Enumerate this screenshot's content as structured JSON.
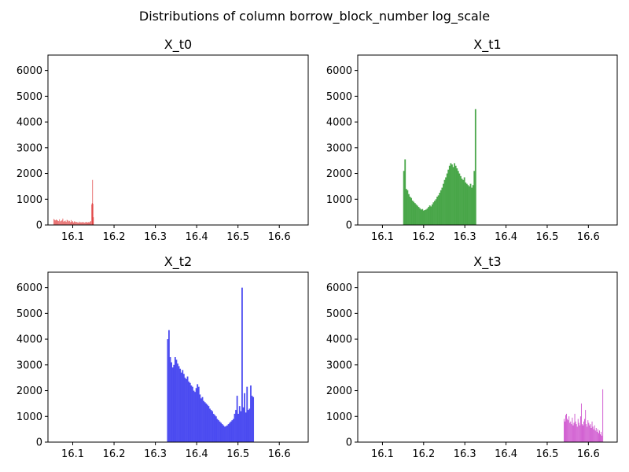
{
  "figure": {
    "suptitle": "Distributions of column borrow_block_number log_scale"
  },
  "chart_data": [
    {
      "type": "bar",
      "title": "X_t0",
      "color": "#e03c3c",
      "xlim": [
        16.04,
        16.67
      ],
      "ylim": [
        0,
        6600
      ],
      "xticks": [
        16.1,
        16.2,
        16.3,
        16.4,
        16.5,
        16.6
      ],
      "xtick_labels": [
        "16.1",
        "16.2",
        "16.3",
        "16.4",
        "16.5",
        "16.6"
      ],
      "yticks": [
        0,
        1000,
        2000,
        3000,
        4000,
        5000,
        6000
      ],
      "ytick_labels": [
        "0",
        "1000",
        "2000",
        "3000",
        "4000",
        "5000",
        "6000"
      ],
      "bin_width": 0.0015,
      "x": [
        16.054,
        16.056,
        16.058,
        16.06,
        16.062,
        16.064,
        16.066,
        16.068,
        16.07,
        16.072,
        16.074,
        16.076,
        16.078,
        16.08,
        16.082,
        16.084,
        16.086,
        16.088,
        16.09,
        16.092,
        16.094,
        16.096,
        16.098,
        16.1,
        16.102,
        16.104,
        16.106,
        16.108,
        16.11,
        16.112,
        16.114,
        16.116,
        16.118,
        16.12,
        16.122,
        16.124,
        16.126,
        16.128,
        16.13,
        16.132,
        16.134,
        16.136,
        16.138,
        16.14,
        16.142,
        16.144,
        16.146,
        16.147,
        16.148,
        16.149,
        16.15
      ],
      "values": [
        230,
        200,
        180,
        210,
        190,
        170,
        150,
        220,
        140,
        160,
        180,
        250,
        130,
        150,
        170,
        120,
        200,
        180,
        140,
        160,
        110,
        190,
        120,
        150,
        100,
        140,
        130,
        110,
        120,
        100,
        90,
        130,
        100,
        110,
        95,
        120,
        105,
        90,
        110,
        100,
        120,
        95,
        110,
        100,
        130,
        150,
        800,
        850,
        1750,
        820,
        300
      ]
    },
    {
      "type": "bar",
      "title": "X_t1",
      "color": "#3a9e3a",
      "xlim": [
        16.04,
        16.67
      ],
      "ylim": [
        0,
        6600
      ],
      "xticks": [
        16.1,
        16.2,
        16.3,
        16.4,
        16.5,
        16.6
      ],
      "xtick_labels": [
        "16.1",
        "16.2",
        "16.3",
        "16.4",
        "16.5",
        "16.6"
      ],
      "yticks": [
        0,
        1000,
        2000,
        3000,
        4000,
        5000,
        6000
      ],
      "ytick_labels": [
        "0",
        "1000",
        "2000",
        "3000",
        "4000",
        "5000",
        "6000"
      ],
      "bin_width": 0.0035,
      "x": [
        16.152,
        16.155,
        16.158,
        16.161,
        16.164,
        16.167,
        16.17,
        16.173,
        16.176,
        16.179,
        16.182,
        16.185,
        16.188,
        16.191,
        16.194,
        16.197,
        16.2,
        16.203,
        16.206,
        16.209,
        16.212,
        16.215,
        16.218,
        16.221,
        16.224,
        16.227,
        16.23,
        16.233,
        16.236,
        16.239,
        16.242,
        16.245,
        16.248,
        16.251,
        16.254,
        16.257,
        16.26,
        16.263,
        16.266,
        16.269,
        16.272,
        16.275,
        16.278,
        16.281,
        16.284,
        16.287,
        16.29,
        16.293,
        16.296,
        16.299,
        16.302,
        16.305,
        16.308,
        16.311,
        16.314,
        16.317,
        16.32,
        16.323,
        16.326
      ],
      "values": [
        2100,
        2550,
        1400,
        1350,
        1200,
        1100,
        1050,
        950,
        900,
        850,
        800,
        750,
        700,
        650,
        600,
        620,
        560,
        580,
        600,
        640,
        700,
        760,
        720,
        800,
        880,
        940,
        1000,
        1100,
        1150,
        1250,
        1350,
        1450,
        1600,
        1750,
        1850,
        2000,
        2150,
        2300,
        2400,
        2350,
        2250,
        2400,
        2300,
        2200,
        2100,
        2000,
        1900,
        1800,
        1750,
        1850,
        1650,
        1600,
        1550,
        1500,
        1600,
        1450,
        1550,
        2100,
        4500
      ]
    },
    {
      "type": "bar",
      "title": "X_t2",
      "color": "#3c3cf0",
      "xlim": [
        16.04,
        16.67
      ],
      "ylim": [
        0,
        6600
      ],
      "xticks": [
        16.1,
        16.2,
        16.3,
        16.4,
        16.5,
        16.6
      ],
      "xtick_labels": [
        "16.1",
        "16.2",
        "16.3",
        "16.4",
        "16.5",
        "16.6"
      ],
      "yticks": [
        0,
        1000,
        2000,
        3000,
        4000,
        5000,
        6000
      ],
      "ytick_labels": [
        "0",
        "1000",
        "2000",
        "3000",
        "4000",
        "5000",
        "6000"
      ],
      "bin_width": 0.0035,
      "x": [
        16.33,
        16.333,
        16.336,
        16.339,
        16.342,
        16.345,
        16.348,
        16.351,
        16.354,
        16.357,
        16.36,
        16.363,
        16.366,
        16.369,
        16.372,
        16.375,
        16.378,
        16.381,
        16.384,
        16.387,
        16.39,
        16.393,
        16.396,
        16.399,
        16.402,
        16.405,
        16.408,
        16.411,
        16.414,
        16.417,
        16.42,
        16.423,
        16.426,
        16.429,
        16.432,
        16.435,
        16.438,
        16.441,
        16.444,
        16.447,
        16.45,
        16.453,
        16.456,
        16.459,
        16.462,
        16.465,
        16.468,
        16.471,
        16.474,
        16.477,
        16.48,
        16.483,
        16.486,
        16.489,
        16.492,
        16.495,
        16.498,
        16.501,
        16.504,
        16.507,
        16.51,
        16.513,
        16.516,
        16.519,
        16.522,
        16.525,
        16.528,
        16.531,
        16.534,
        16.537
      ],
      "values": [
        4000,
        4350,
        3300,
        3100,
        2900,
        3000,
        3300,
        3200,
        3050,
        2950,
        2850,
        2700,
        2800,
        2650,
        2500,
        2450,
        2550,
        2350,
        2300,
        2200,
        2150,
        2000,
        1950,
        2100,
        2250,
        2150,
        1850,
        1700,
        1750,
        1600,
        1550,
        1500,
        1450,
        1400,
        1300,
        1250,
        1200,
        1100,
        1050,
        1000,
        900,
        850,
        800,
        750,
        700,
        650,
        600,
        620,
        650,
        700,
        750,
        800,
        850,
        900,
        1100,
        1250,
        1800,
        1100,
        1400,
        1200,
        6000,
        1350,
        1900,
        1150,
        2150,
        1250,
        1300,
        2200,
        1800,
        1750
      ]
    },
    {
      "type": "bar",
      "title": "X_t3",
      "color": "#c83cc8",
      "xlim": [
        16.04,
        16.67
      ],
      "ylim": [
        0,
        6600
      ],
      "xticks": [
        16.1,
        16.2,
        16.3,
        16.4,
        16.5,
        16.6
      ],
      "xtick_labels": [
        "16.1",
        "16.2",
        "16.3",
        "16.4",
        "16.5",
        "16.6"
      ],
      "yticks": [
        0,
        1000,
        2000,
        3000,
        4000,
        5000,
        6000
      ],
      "ytick_labels": [
        "0",
        "1000",
        "2000",
        "3000",
        "4000",
        "5000",
        "6000"
      ],
      "bin_width": 0.0017,
      "x": [
        16.541,
        16.543,
        16.545,
        16.547,
        16.549,
        16.551,
        16.553,
        16.555,
        16.557,
        16.559,
        16.561,
        16.563,
        16.565,
        16.567,
        16.569,
        16.571,
        16.573,
        16.575,
        16.577,
        16.579,
        16.581,
        16.583,
        16.585,
        16.587,
        16.589,
        16.591,
        16.593,
        16.595,
        16.597,
        16.599,
        16.601,
        16.603,
        16.605,
        16.607,
        16.609,
        16.611,
        16.613,
        16.615,
        16.617,
        16.619,
        16.621,
        16.623,
        16.625,
        16.627,
        16.629,
        16.631,
        16.633,
        16.635
      ],
      "values": [
        900,
        800,
        1050,
        1100,
        900,
        850,
        1000,
        750,
        800,
        700,
        950,
        650,
        750,
        1100,
        800,
        700,
        600,
        900,
        750,
        650,
        1000,
        1500,
        700,
        650,
        800,
        900,
        1250,
        700,
        600,
        850,
        750,
        650,
        700,
        550,
        800,
        600,
        500,
        650,
        450,
        550,
        400,
        500,
        350,
        450,
        300,
        400,
        250,
        2050
      ]
    }
  ]
}
